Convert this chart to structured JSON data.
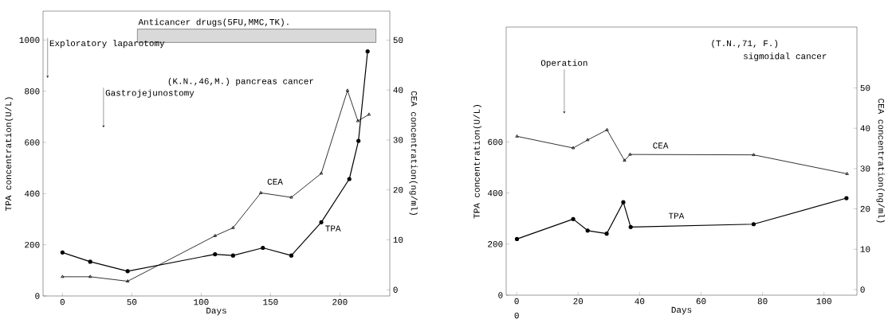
{
  "chart_data": [
    {
      "type": "line",
      "xlabel": "Days",
      "ylabel": "TPA concentration(U/L)",
      "y2label": "CEA concentration(ng/ml)",
      "xlim": [
        -14,
        236
      ],
      "xticks": [
        0,
        50,
        100,
        150,
        200
      ],
      "ylim": [
        0,
        1113
      ],
      "yticks": [
        0,
        200,
        400,
        600,
        800,
        1000
      ],
      "y2lim": [
        -1.25,
        55.8
      ],
      "y2ticks": [
        0,
        10,
        20,
        30,
        40,
        50
      ],
      "series": [
        {
          "name": "TPA",
          "color": "#000000",
          "marker": "circle",
          "x": [
            0,
            20,
            47,
            110,
            123,
            144.5,
            165,
            186.6,
            206.8,
            213.4,
            220
          ],
          "values": [
            170,
            134,
            97,
            163,
            158,
            188,
            158,
            288,
            457,
            606,
            956
          ]
        },
        {
          "name": "CEA",
          "color": "#000000",
          "marker": "triangle",
          "axis": "y2",
          "x": [
            0,
            20,
            47,
            110,
            123,
            143,
            165,
            186.6,
            205.5,
            213,
            221
          ],
          "values": [
            2.6,
            2.6,
            1.7,
            10.8,
            12.4,
            19.4,
            18.5,
            23.3,
            39.9,
            33.8,
            35.1
          ]
        }
      ],
      "bands": [
        {
          "axis": "x",
          "from": 54,
          "to": 226,
          "label": "Anticancer drugs(5FU,MMC,TK).",
          "color": "#d9d9d9"
        }
      ],
      "annotations": [
        {
          "text": "Exploratory laparotomy",
          "x": -10.7,
          "y": 852
        },
        {
          "text": "Gastrojejunostomy",
          "x": 29.6,
          "y": 658
        },
        "(K.N.,46,M.) pancreas cancer"
      ]
    },
    {
      "type": "line",
      "xlabel": "Days",
      "ylabel": "TPA concentration(U/L)",
      "y2label": "CEA concentration(ng/ml)",
      "xlim": [
        -3.4,
        110.7
      ],
      "xticks": [
        0,
        20,
        40,
        60,
        80,
        100
      ],
      "ylim": [
        0,
        1050
      ],
      "yticks": [
        0,
        200,
        400,
        600
      ],
      "y2lim": [
        -1.4,
        65.1
      ],
      "y2ticks": [
        0,
        10,
        20,
        30,
        40,
        50
      ],
      "series": [
        {
          "name": "TPA",
          "color": "#000000",
          "marker": "circle",
          "x": [
            0.1,
            18.4,
            23.1,
            29.3,
            34.7,
            37.1,
            77.1,
            107.3
          ],
          "values": [
            220,
            298,
            253,
            241,
            364,
            267,
            278,
            380
          ]
        },
        {
          "name": "CEA",
          "color": "#000000",
          "marker": "triangle",
          "axis": "y2",
          "x": [
            0.1,
            18.4,
            23.1,
            29.4,
            35.1,
            36.9,
            77.1,
            107.5
          ],
          "values": [
            38.0,
            35.1,
            37.1,
            39.6,
            32.0,
            33.5,
            33.4,
            28.7
          ]
        }
      ],
      "annotations": [
        {
          "text": "Operation",
          "x": 15.5,
          "y": 711
        },
        "(T.N.,71, F.)",
        "sigmoidal cancer",
        "0"
      ]
    }
  ]
}
